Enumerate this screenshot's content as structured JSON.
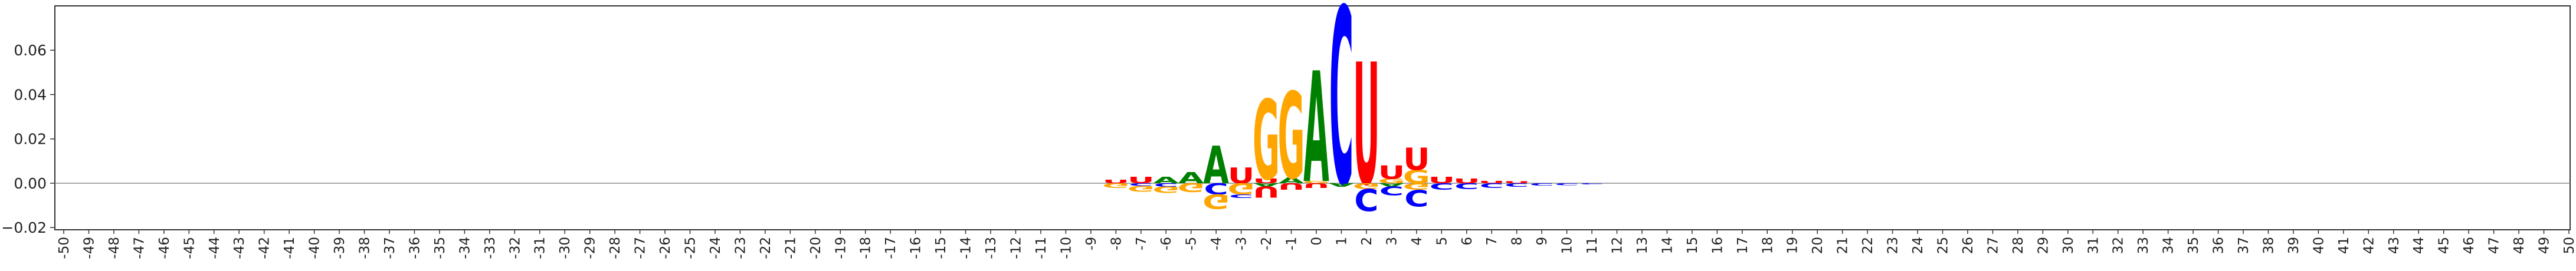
{
  "chart_data": {
    "type": "sequence-logo",
    "title": "",
    "xlabel": "",
    "ylabel": "",
    "alphabet": [
      "A",
      "C",
      "G",
      "U"
    ],
    "colors": {
      "A": "#008000",
      "C": "#0000ff",
      "G": "#ffa500",
      "U": "#ff0000"
    },
    "positions": [
      -50,
      -49,
      -48,
      -47,
      -46,
      -45,
      -44,
      -43,
      -42,
      -41,
      -40,
      -39,
      -38,
      -37,
      -36,
      -35,
      -34,
      -33,
      -32,
      -31,
      -30,
      -29,
      -28,
      -27,
      -26,
      -25,
      -24,
      -23,
      -22,
      -21,
      -20,
      -19,
      -18,
      -17,
      -16,
      -15,
      -14,
      -13,
      -12,
      -11,
      -10,
      -9,
      -8,
      -7,
      -6,
      -5,
      -4,
      -3,
      -2,
      -1,
      0,
      1,
      2,
      3,
      4,
      5,
      6,
      7,
      8,
      9,
      10,
      11,
      12,
      13,
      14,
      15,
      16,
      17,
      18,
      19,
      20,
      21,
      22,
      23,
      24,
      25,
      26,
      27,
      28,
      29,
      30,
      31,
      32,
      33,
      34,
      35,
      36,
      37,
      38,
      39,
      40,
      41,
      42,
      43,
      44,
      45,
      46,
      47,
      48,
      49,
      50
    ],
    "ylim": [
      -0.021,
      0.08
    ],
    "yticks": [
      -0.02,
      0.0,
      0.02,
      0.04,
      0.06
    ],
    "ytick_labels": [
      "−0.02",
      "0.00",
      "0.02",
      "0.04",
      "0.06"
    ],
    "grid": false,
    "legend": "none",
    "zero_line": true,
    "letters": [
      {
        "pos": -8,
        "letter": "U",
        "value": 0.0015
      },
      {
        "pos": -8,
        "letter": "G",
        "value": -0.002
      },
      {
        "pos": -7,
        "letter": "U",
        "value": 0.003
      },
      {
        "pos": -7,
        "letter": "C",
        "value": -0.0012
      },
      {
        "pos": -7,
        "letter": "G",
        "value": -0.0025
      },
      {
        "pos": -6,
        "letter": "A",
        "value": 0.003
      },
      {
        "pos": -6,
        "letter": "C",
        "value": -0.0015
      },
      {
        "pos": -6,
        "letter": "G",
        "value": -0.003
      },
      {
        "pos": -5,
        "letter": "A",
        "value": 0.005
      },
      {
        "pos": -5,
        "letter": "G",
        "value": -0.004
      },
      {
        "pos": -4,
        "letter": "A",
        "value": 0.017
      },
      {
        "pos": -4,
        "letter": "C",
        "value": -0.005
      },
      {
        "pos": -4,
        "letter": "G",
        "value": -0.0065
      },
      {
        "pos": -3,
        "letter": "U",
        "value": 0.007
      },
      {
        "pos": -3,
        "letter": "G",
        "value": -0.005
      },
      {
        "pos": -3,
        "letter": "C",
        "value": -0.0015
      },
      {
        "pos": -2,
        "letter": "U",
        "value": 0.002
      },
      {
        "pos": -2,
        "letter": "G",
        "value": 0.036
      },
      {
        "pos": -2,
        "letter": "A",
        "value": -0.0015
      },
      {
        "pos": -2,
        "letter": "U",
        "value": -0.005
      },
      {
        "pos": -1,
        "letter": "A",
        "value": 0.0025
      },
      {
        "pos": -1,
        "letter": "G",
        "value": 0.039
      },
      {
        "pos": -1,
        "letter": "U",
        "value": -0.003
      },
      {
        "pos": 0,
        "letter": "G",
        "value": 0.001
      },
      {
        "pos": 0,
        "letter": "A",
        "value": 0.05
      },
      {
        "pos": 0,
        "letter": "U",
        "value": -0.002
      },
      {
        "pos": 1,
        "letter": "C",
        "value": 0.08
      },
      {
        "pos": 1,
        "letter": "A",
        "value": -0.0015
      },
      {
        "pos": 2,
        "letter": "U",
        "value": 0.055
      },
      {
        "pos": 2,
        "letter": "G",
        "value": -0.0025
      },
      {
        "pos": 2,
        "letter": "C",
        "value": -0.01
      },
      {
        "pos": 3,
        "letter": "G",
        "value": 0.002
      },
      {
        "pos": 3,
        "letter": "U",
        "value": 0.006
      },
      {
        "pos": 3,
        "letter": "A",
        "value": -0.0015
      },
      {
        "pos": 3,
        "letter": "C",
        "value": -0.004
      },
      {
        "pos": 4,
        "letter": "G",
        "value": 0.006
      },
      {
        "pos": 4,
        "letter": "U",
        "value": 0.01
      },
      {
        "pos": 4,
        "letter": "G",
        "value": -0.003
      },
      {
        "pos": 4,
        "letter": "C",
        "value": -0.0075
      },
      {
        "pos": 5,
        "letter": "U",
        "value": 0.003
      },
      {
        "pos": 5,
        "letter": "C",
        "value": -0.003
      },
      {
        "pos": 6,
        "letter": "U",
        "value": 0.002
      },
      {
        "pos": 6,
        "letter": "C",
        "value": -0.0025
      },
      {
        "pos": 7,
        "letter": "U",
        "value": 0.001
      },
      {
        "pos": 7,
        "letter": "C",
        "value": -0.002
      },
      {
        "pos": 8,
        "letter": "U",
        "value": 0.0008
      },
      {
        "pos": 8,
        "letter": "C",
        "value": -0.0015
      },
      {
        "pos": 9,
        "letter": "C",
        "value": -0.001
      },
      {
        "pos": 10,
        "letter": "C",
        "value": -0.0008
      },
      {
        "pos": 11,
        "letter": "C",
        "value": -0.0005
      }
    ]
  }
}
